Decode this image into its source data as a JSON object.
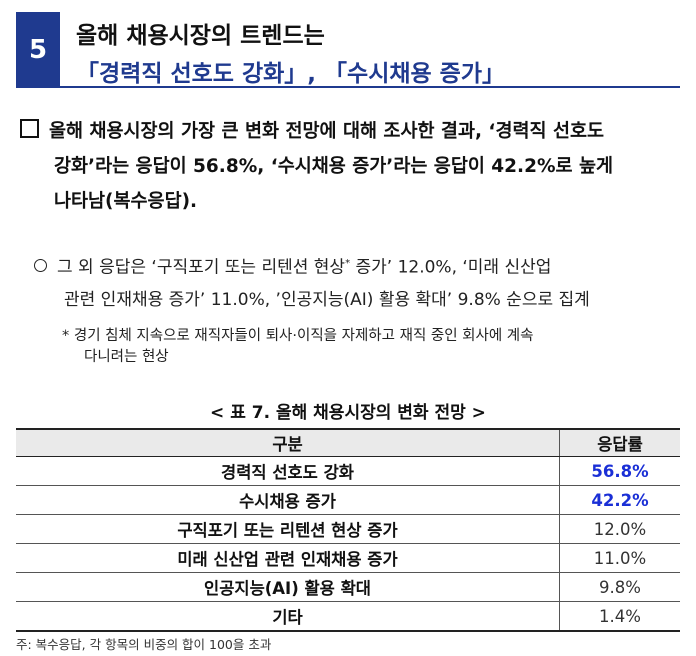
{
  "header": {
    "number": "5",
    "title_line1": "올해 채용시장의 트렌드는",
    "title_line2": "「경력직 선호도 강화」, 「수시채용 증가」"
  },
  "main_paragraph": {
    "line1": "올해 채용시장의 가장 큰 변화 전망에 대해 조사한 결과, ‘경력직 선호도",
    "line2": "강화’라는 응답이 56.8%, ‘수시채용 증가’라는 응답이 42.2%로 높게",
    "line3": "나타남(복수응답)."
  },
  "sub_paragraph": {
    "line1_a": "그 외 응답은 ‘구직포기 또는 리텐션 현상",
    "line1_sup": "*",
    "line1_b": " 증가’ 12.0%, ‘미래 신산업",
    "line2": "관련 인재채용 증가’ 11.0%, ’인공지능(AI) 활용 확대’ 9.8% 순으로 집계"
  },
  "note": {
    "line1": "* 경기 침체 지속으로 재직자들이 퇴사·이직을 자제하고 재직 중인 회사에 계속",
    "line2": "다니려는 현상"
  },
  "table": {
    "title": "< 표 7. 올해 채용시장의 변화 전망 >",
    "headers": [
      "구분",
      "응답률"
    ],
    "rows": [
      {
        "label": "경력직 선호도 강화",
        "value": "56.8%"
      },
      {
        "label": "수시채용 증가",
        "value": "42.2%"
      },
      {
        "label": "구직포기 또는 리텐션 현상 증가",
        "value": "12.0%"
      },
      {
        "label": "미래 신산업 관련 인재채용 증가",
        "value": "11.0%"
      },
      {
        "label": "인공지능(AI) 활용 확대",
        "value": "9.8%"
      },
      {
        "label": "기타",
        "value": "1.4%"
      }
    ]
  },
  "footnote": "주: 복수응답, 각 항목의 비중의 합이 100을 초과",
  "colors": {
    "accent": "#1f3a8f",
    "highlight": "#1a2fd6"
  }
}
